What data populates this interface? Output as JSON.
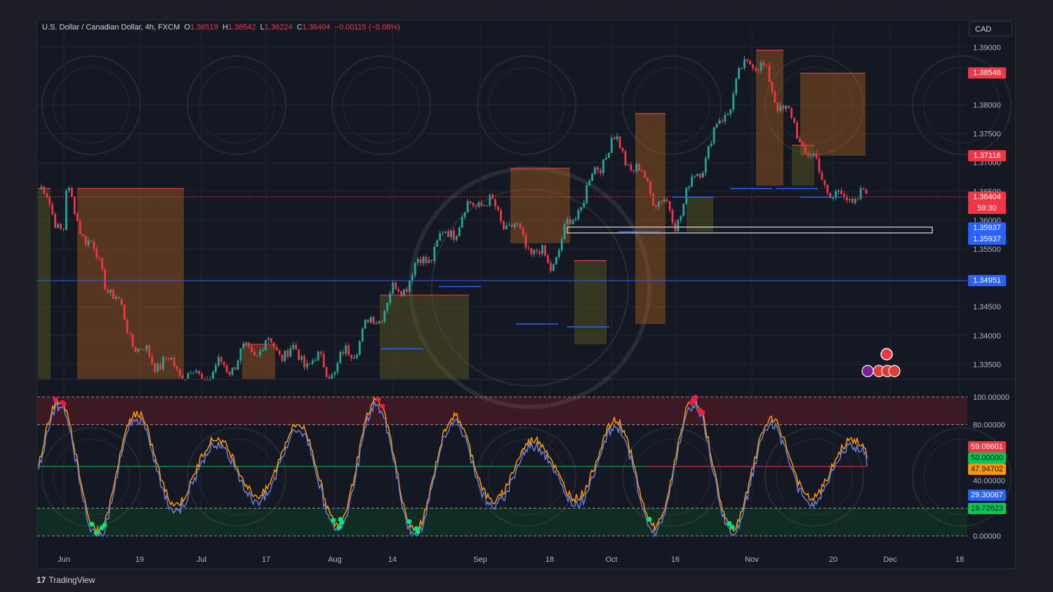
{
  "header": {
    "symbol": "U.S. Dollar / Canadian Dollar, 4h, FXCM",
    "o_label": "O",
    "o": "1.36519",
    "h_label": "H",
    "h": "1.36542",
    "l_label": "L",
    "l": "1.36224",
    "c_label": "C",
    "c": "1.36404",
    "change": "−0.00115 (−0.08%)"
  },
  "currency_button": "CAD",
  "branding": {
    "logo": "TradingView"
  },
  "colors": {
    "up": "#26a69a",
    "down": "#f23645",
    "bg": "#141823",
    "blue": "#2962ff",
    "orange": "#ff9800",
    "green": "#00c853"
  },
  "price_tags": [
    {
      "value": "1.38548",
      "color": "#f23645"
    },
    {
      "value": "1.37116",
      "color": "#f23645"
    },
    {
      "value": "1.36404",
      "sub": "59:30",
      "color": "#f23645"
    },
    {
      "value": "1.35937",
      "color": "#2962ff"
    },
    {
      "value": "1.35937",
      "color": "#2962ff"
    },
    {
      "value": "1.34951",
      "color": "#2962ff"
    }
  ],
  "osc_tags": [
    {
      "value": "59.08601",
      "color": "#f23645"
    },
    {
      "value": "50.00000",
      "color": "#00c853"
    },
    {
      "value": "47.94702",
      "color": "#ff9800"
    },
    {
      "value": "29.30067",
      "color": "#2962ff"
    },
    {
      "value": "19.72623",
      "color": "#00c853"
    }
  ],
  "chart_data": [
    {
      "type": "candlestick",
      "title": "U.S. Dollar / Canadian Dollar, 4h, FXCM",
      "x_ticks": [
        "Jun",
        "19",
        "Jul",
        "17",
        "Aug",
        "14",
        "Sep",
        "18",
        "Oct",
        "16",
        "Nov",
        "20",
        "Dec",
        "18"
      ],
      "y_ticks": [
        "1.39000",
        "1.38000",
        "1.37500",
        "1.37000",
        "1.36500",
        "1.36000",
        "1.35500",
        "1.35000",
        "1.34500",
        "1.34000",
        "1.33500"
      ],
      "ylim": [
        1.3325,
        1.3915
      ],
      "series": [
        {
          "name": "close",
          "x_points": [
            "Jun",
            "19",
            "Jul",
            "17",
            "Aug",
            "14",
            "Sep",
            "18",
            "Oct",
            "16",
            "Nov",
            "20"
          ],
          "values": [
            1.3655,
            1.337,
            1.3325,
            1.3385,
            1.334,
            1.347,
            1.364,
            1.352,
            1.374,
            1.36,
            1.389,
            1.364
          ]
        }
      ],
      "horizontal_levels": [
        1.38548,
        1.37116,
        1.36404,
        1.35937,
        1.34951
      ],
      "grid": true
    },
    {
      "type": "line",
      "y_ticks": [
        "100.00000",
        "80.00000",
        "40.00000",
        "0.00000"
      ],
      "ylim": [
        0,
        100
      ],
      "levels": [
        100,
        80,
        50,
        20,
        0
      ],
      "series": [
        {
          "values": [
            59.08601
          ]
        },
        {
          "values": [
            47.94702
          ]
        },
        {
          "values": [
            29.30067
          ]
        }
      ]
    }
  ]
}
